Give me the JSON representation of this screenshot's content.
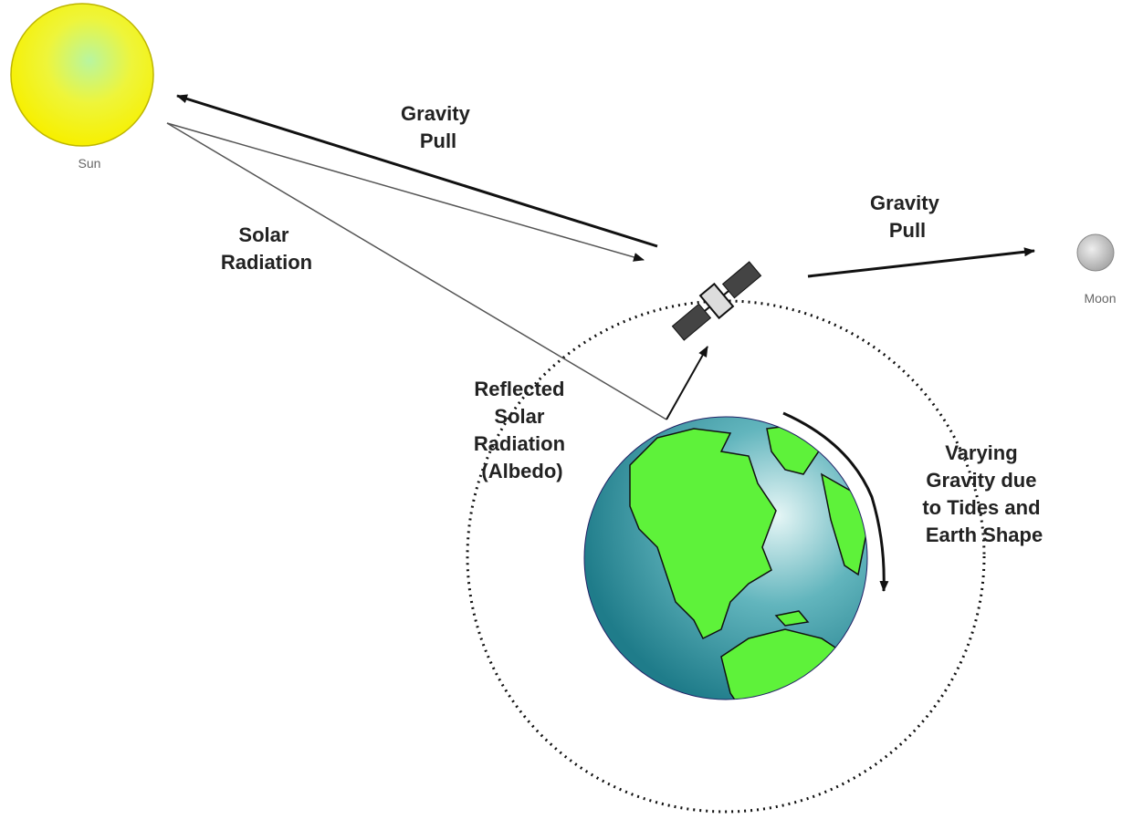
{
  "bodies": {
    "sun": {
      "label": "Sun"
    },
    "moon": {
      "label": "Moon"
    }
  },
  "labels": {
    "sun_gravity": {
      "lines": [
        "Gravity",
        "Pull"
      ]
    },
    "solar_radiation": {
      "lines": [
        "Solar",
        "Radiation"
      ]
    },
    "moon_gravity": {
      "lines": [
        "Gravity",
        "Pull"
      ]
    },
    "albedo": {
      "lines": [
        "Reflected",
        "Solar",
        "Radiation",
        "(Albedo)"
      ]
    },
    "varying_gravity": {
      "lines": [
        "Varying",
        "Gravity due",
        "to Tides and",
        "Earth Shape"
      ]
    }
  }
}
